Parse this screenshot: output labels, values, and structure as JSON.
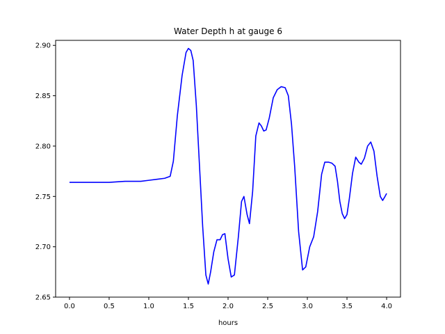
{
  "chart_data": {
    "type": "line",
    "title": "Water Depth h at gauge 6",
    "xlabel": "hours",
    "ylabel": "",
    "xlim": [
      -0.175,
      4.175
    ],
    "ylim": [
      2.65,
      2.905
    ],
    "grid": false,
    "legend": "none",
    "x_ticks": [
      0.0,
      0.5,
      1.0,
      1.5,
      2.0,
      2.5,
      3.0,
      3.5,
      4.0
    ],
    "x_tick_labels": [
      "0.0",
      "0.5",
      "1.0",
      "1.5",
      "2.0",
      "2.5",
      "3.0",
      "3.5",
      "4.0"
    ],
    "y_ticks": [
      2.65,
      2.7,
      2.75,
      2.8,
      2.85,
      2.9
    ],
    "y_tick_labels": [
      "2.65",
      "2.70",
      "2.75",
      "2.80",
      "2.85",
      "2.90"
    ],
    "series": [
      {
        "color": "#0000ff",
        "x": [
          0.0,
          0.3,
          0.5,
          0.7,
          0.9,
          1.0,
          1.1,
          1.2,
          1.27,
          1.31,
          1.36,
          1.42,
          1.47,
          1.5,
          1.53,
          1.56,
          1.6,
          1.64,
          1.68,
          1.72,
          1.75,
          1.78,
          1.82,
          1.86,
          1.9,
          1.93,
          1.96,
          2.0,
          2.04,
          2.08,
          2.13,
          2.17,
          2.2,
          2.24,
          2.27,
          2.31,
          2.35,
          2.39,
          2.42,
          2.45,
          2.48,
          2.52,
          2.57,
          2.62,
          2.67,
          2.72,
          2.76,
          2.8,
          2.84,
          2.89,
          2.94,
          2.98,
          3.03,
          3.08,
          3.13,
          3.18,
          3.22,
          3.27,
          3.31,
          3.35,
          3.38,
          3.41,
          3.44,
          3.47,
          3.5,
          3.53,
          3.57,
          3.61,
          3.65,
          3.68,
          3.72,
          3.76,
          3.8,
          3.84,
          3.88,
          3.92,
          3.95,
          3.98,
          4.0
        ],
        "y": [
          2.764,
          2.764,
          2.764,
          2.765,
          2.765,
          2.766,
          2.767,
          2.768,
          2.77,
          2.785,
          2.83,
          2.87,
          2.893,
          2.897,
          2.895,
          2.885,
          2.84,
          2.78,
          2.72,
          2.672,
          2.663,
          2.675,
          2.695,
          2.707,
          2.707,
          2.712,
          2.713,
          2.688,
          2.67,
          2.672,
          2.71,
          2.745,
          2.75,
          2.732,
          2.723,
          2.755,
          2.81,
          2.823,
          2.82,
          2.815,
          2.816,
          2.828,
          2.848,
          2.856,
          2.859,
          2.858,
          2.85,
          2.822,
          2.78,
          2.715,
          2.677,
          2.68,
          2.7,
          2.71,
          2.735,
          2.772,
          2.784,
          2.784,
          2.783,
          2.78,
          2.765,
          2.745,
          2.733,
          2.728,
          2.732,
          2.748,
          2.773,
          2.789,
          2.784,
          2.782,
          2.788,
          2.8,
          2.804,
          2.795,
          2.77,
          2.75,
          2.746,
          2.75,
          2.753
        ]
      }
    ]
  }
}
